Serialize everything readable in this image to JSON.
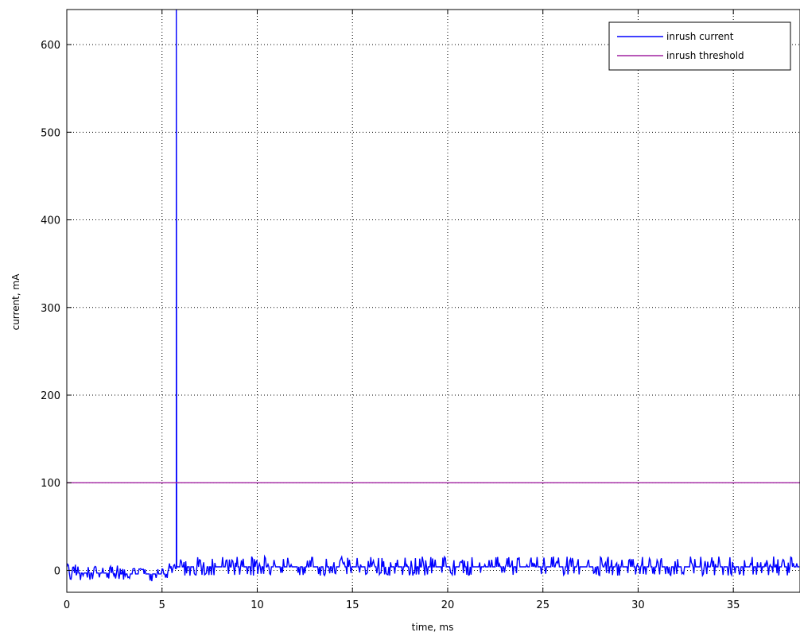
{
  "chart_data": {
    "type": "line",
    "xlabel": "time, ms",
    "ylabel": "current, mA",
    "xlim": [
      0,
      38.5
    ],
    "ylim": [
      -25,
      640
    ],
    "xticks": [
      0,
      5,
      10,
      15,
      20,
      25,
      30,
      35
    ],
    "yticks": [
      0,
      100,
      200,
      300,
      400,
      500,
      600
    ],
    "grid": true,
    "legend": {
      "placement": "top-right",
      "entries": [
        "inrush current",
        "inrush threshold"
      ]
    },
    "series": [
      {
        "name": "inrush current",
        "color": "#0000ff",
        "spike": {
          "x": 5.75,
          "y_peak": 640
        },
        "segments": [
          {
            "x_start": 0.0,
            "x_end": 2.8,
            "baseline": -3,
            "noise_low": -12,
            "noise_high": 7
          },
          {
            "x_start": 2.8,
            "x_end": 5.3,
            "baseline": -4,
            "noise_low": -14,
            "noise_high": 2
          },
          {
            "x_start": 5.3,
            "x_end": 5.75,
            "baseline": 2,
            "noise_low": -5,
            "noise_high": 8
          },
          {
            "x_start": 5.75,
            "x_end": 38.5,
            "baseline": 4,
            "noise_low": -6,
            "noise_high": 16
          }
        ]
      },
      {
        "name": "inrush threshold",
        "color": "#a020a0",
        "x": [
          0,
          38.5
        ],
        "values": [
          100,
          100
        ]
      }
    ]
  }
}
